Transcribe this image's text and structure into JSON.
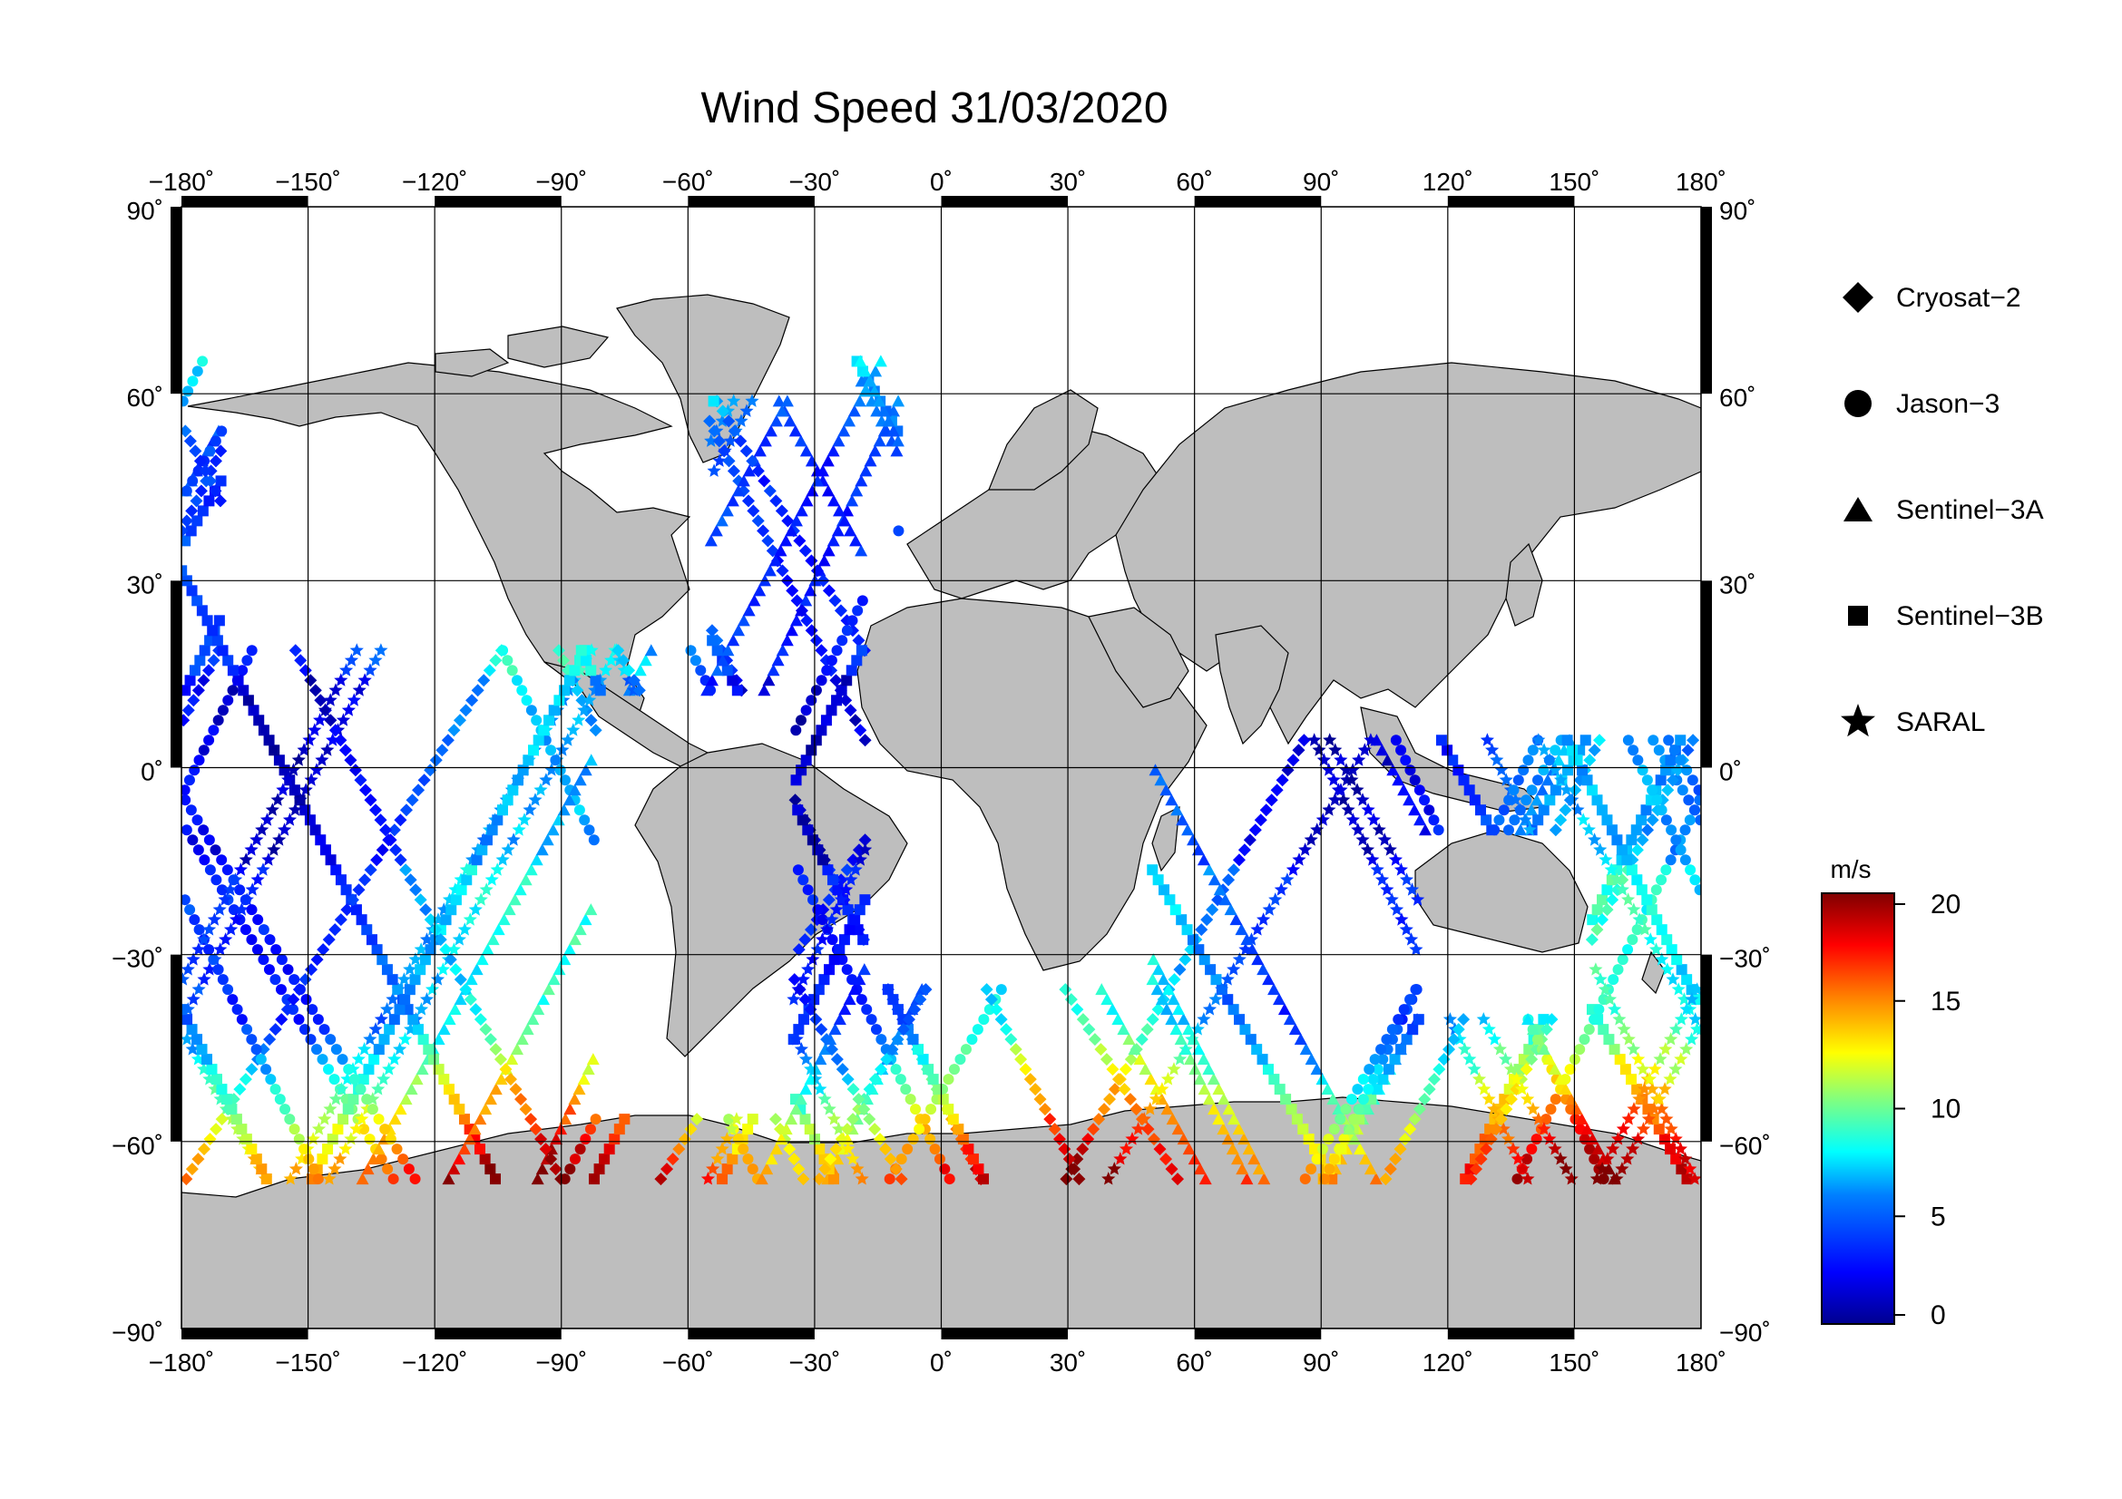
{
  "title": "Wind Speed 31/03/2020",
  "map": {
    "lon_labels": [
      "−180˚",
      "−150˚",
      "−120˚",
      "−90˚",
      "−60˚",
      "−30˚",
      "0˚",
      "30˚",
      "60˚",
      "90˚",
      "120˚",
      "150˚",
      "180˚"
    ],
    "lat_labels": [
      "90˚",
      "60˚",
      "30˚",
      "0˚",
      "−30˚",
      "−60˚",
      "−90˚"
    ],
    "lon_values": [
      -180,
      -150,
      -120,
      -90,
      -60,
      -30,
      0,
      30,
      60,
      90,
      120,
      150,
      180
    ],
    "lat_values": [
      90,
      60,
      30,
      0,
      -30,
      -60,
      -90
    ],
    "land_color": "#bebebe",
    "ocean_color": "#ffffff"
  },
  "legend": {
    "items": [
      {
        "label": "Cryosat−2",
        "marker": "diamond-marker"
      },
      {
        "label": "Jason−3",
        "marker": "circle-marker"
      },
      {
        "label": "Sentinel−3A",
        "marker": "triangle-marker"
      },
      {
        "label": "Sentinel−3B",
        "marker": "square-marker"
      },
      {
        "label": "SARAL",
        "marker": "star-marker"
      }
    ]
  },
  "colorbar": {
    "unit": "m/s",
    "min": 0,
    "max": 20,
    "ticks": [
      "20",
      "15",
      "10",
      "5",
      "0"
    ],
    "tick_values": [
      20,
      15,
      10,
      5,
      0
    ],
    "colors": [
      "#00008f",
      "#0000ff",
      "#0080ff",
      "#00ffff",
      "#80ff80",
      "#ffff00",
      "#ff8000",
      "#ff0000",
      "#800000"
    ]
  }
}
